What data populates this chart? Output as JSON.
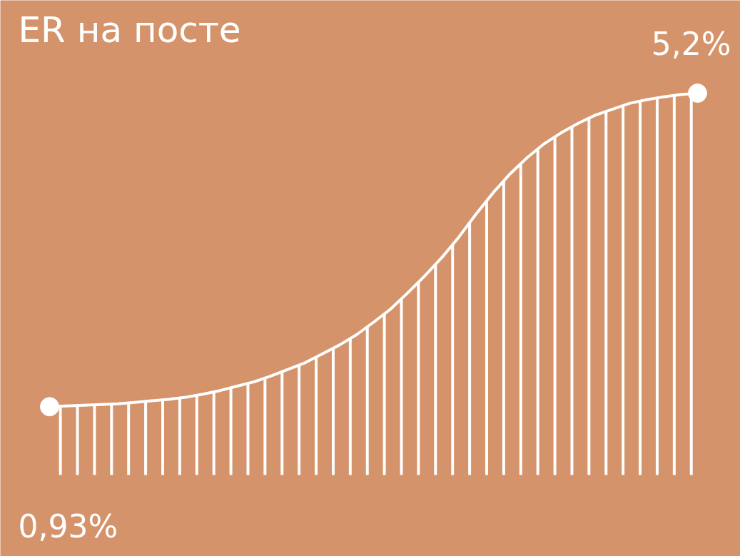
{
  "chart_data": {
    "type": "area",
    "title": "ER на посте",
    "categories": [
      null,
      null,
      null,
      null,
      null,
      null,
      null,
      null,
      null,
      null,
      null,
      null,
      null,
      null,
      null,
      null,
      null,
      null,
      null,
      null,
      null,
      null,
      null,
      null,
      null,
      null,
      null,
      null,
      null,
      null,
      null,
      null,
      null,
      null,
      null,
      null,
      null,
      null,
      null
    ],
    "series": [
      {
        "color": "#ffffff",
        "values": [
          0.93,
          0.94,
          0.95,
          0.96,
          0.97,
          0.99,
          1.01,
          1.03,
          1.06,
          1.1,
          1.15,
          1.21,
          1.27,
          1.35,
          1.44,
          1.53,
          1.65,
          1.77,
          1.91,
          2.08,
          2.26,
          2.48,
          2.71,
          2.96,
          3.24,
          3.55,
          3.84,
          4.1,
          4.32,
          4.51,
          4.66,
          4.79,
          4.9,
          4.98,
          5.06,
          5.11,
          5.15,
          5.18,
          5.2
        ],
        "value_labels": [
          "0,93%",
          null,
          null,
          null,
          null,
          null,
          null,
          null,
          null,
          null,
          null,
          null,
          null,
          null,
          null,
          null,
          null,
          null,
          null,
          null,
          null,
          null,
          null,
          null,
          null,
          null,
          null,
          null,
          null,
          null,
          null,
          null,
          null,
          null,
          null,
          null,
          null,
          null,
          "5,2%"
        ]
      }
    ],
    "grid": false
  }
}
